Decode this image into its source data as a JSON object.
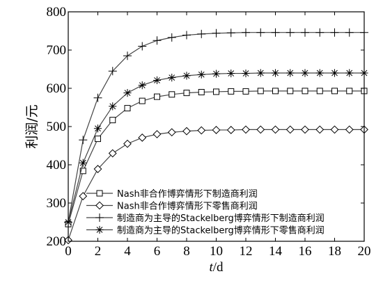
{
  "chart_data": {
    "type": "line",
    "xlabel_italic": "t",
    "xlabel_unit": "/d",
    "ylabel": "利润/元",
    "xlim": [
      0,
      20
    ],
    "ylim": [
      200,
      800
    ],
    "x_ticks": [
      0,
      2,
      4,
      6,
      8,
      10,
      12,
      14,
      16,
      18,
      20
    ],
    "y_ticks": [
      200,
      300,
      400,
      500,
      600,
      700,
      800
    ],
    "grid": false,
    "legend_position": "bottom-left",
    "x": [
      0,
      1,
      2,
      3,
      4,
      5,
      6,
      7,
      8,
      9,
      10,
      11,
      12,
      13,
      14,
      15,
      16,
      17,
      18,
      19,
      20
    ],
    "series": [
      {
        "name": "Nash非合作博弈情形下制造商利润",
        "marker": "square",
        "values": [
          245,
          384,
          468,
          517,
          548,
          567,
          578,
          584,
          588,
          590,
          591,
          592,
          592,
          593,
          593,
          593,
          593,
          593,
          593,
          593,
          593
        ]
      },
      {
        "name": "Nash非合作博弈情形下零售商利润",
        "marker": "diamond",
        "values": [
          203,
          318,
          389,
          430,
          455,
          471,
          480,
          485,
          488,
          490,
          491,
          491,
          492,
          492,
          492,
          492,
          492,
          492,
          492,
          492,
          492
        ]
      },
      {
        "name": "制造商为主导的Stackelberg博弈情形下制造商利润",
        "marker": "plus",
        "values": [
          250,
          465,
          575,
          645,
          685,
          710,
          725,
          733,
          739,
          742,
          744,
          745,
          746,
          746,
          746,
          746,
          746,
          746,
          746,
          746,
          746
        ]
      },
      {
        "name": "制造商为主导的Stackelberg博弈情形下零售商利润",
        "marker": "star",
        "values": [
          250,
          405,
          495,
          553,
          588,
          608,
          621,
          628,
          633,
          636,
          638,
          639,
          639,
          640,
          640,
          640,
          640,
          640,
          640,
          640,
          640
        ]
      }
    ]
  }
}
